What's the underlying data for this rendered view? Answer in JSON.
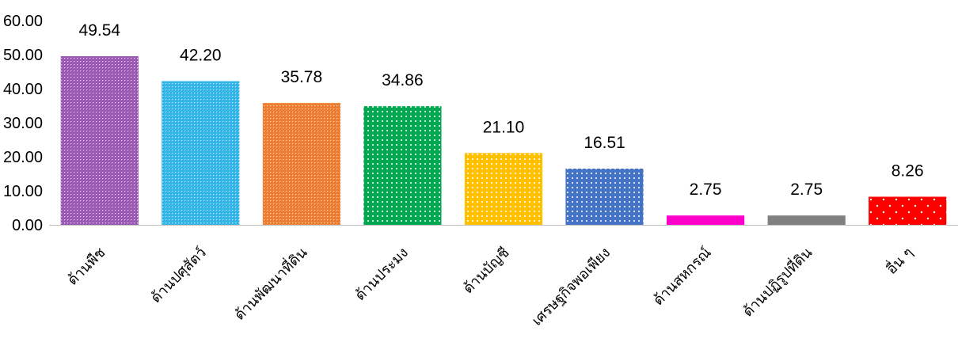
{
  "chart_data": {
    "type": "bar",
    "title": "",
    "xlabel": "",
    "ylabel": "",
    "ylim": [
      0,
      60
    ],
    "yticks": [
      "0.00",
      "10.00",
      "20.00",
      "30.00",
      "40.00",
      "50.00",
      "60.00"
    ],
    "grid": false,
    "legend": "none",
    "categories": [
      "ด้านพืช",
      "ด้านปศุสัตว์",
      "ด้านพัฒนาที่ดิน",
      "ด้านประมง",
      "ด้านบัญชี",
      "เศรษฐกิจพอเพียง",
      "ด้านสหกรณ์",
      "ด้านปฏิรูปที่ดิน",
      "อื่น ๆ"
    ],
    "values": [
      49.54,
      42.2,
      35.78,
      34.86,
      21.1,
      16.51,
      2.75,
      2.75,
      8.26
    ],
    "data_labels": [
      "49.54",
      "42.20",
      "35.78",
      "34.86",
      "21.10",
      "16.51",
      "2.75",
      "2.75",
      "8.26"
    ],
    "colors": [
      "#9B59B6",
      "#33B5E5",
      "#ED7D31",
      "#00A650",
      "#FFC000",
      "#4472C4",
      "#FF00CC",
      "#808080",
      "#FF0000"
    ]
  }
}
